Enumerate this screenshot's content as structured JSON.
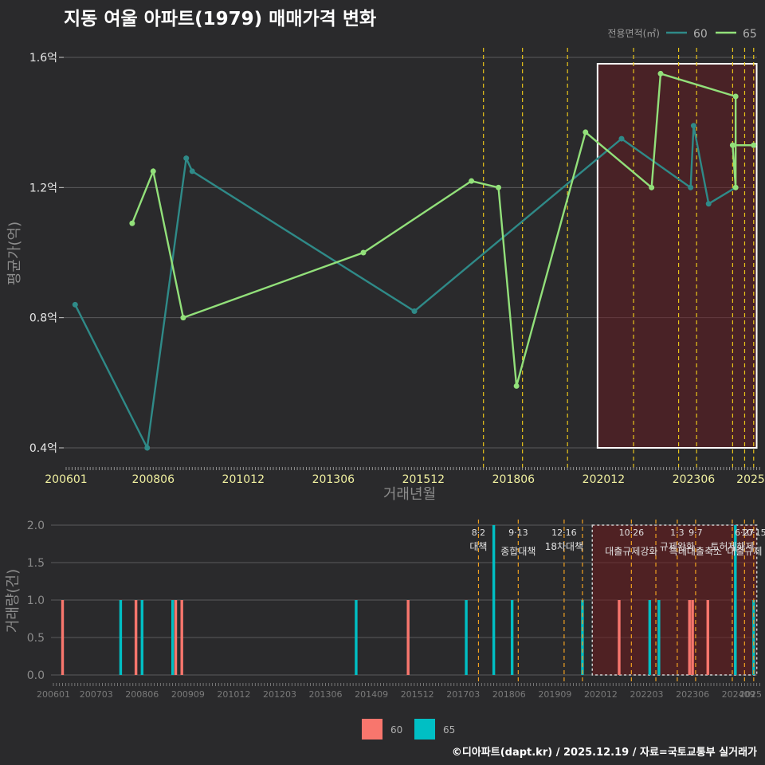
{
  "title": "지동 여울 아파트(1979) 매매가격 변화",
  "credit": "©디아파트(dapt.kr) / 2025.12.19 / 자료=국토교통부 실거래가",
  "colors": {
    "s60_price": "#2f8a88",
    "s65_price": "#92e07a",
    "s60_volume": "#f8766d",
    "s65_volume": "#00bfc4",
    "policy_line": "#e8c41a",
    "highlight_border": "#ffffff"
  },
  "chart_data": [
    {
      "type": "line",
      "title": "지동 여울 아파트(1979) 매매가격 변화",
      "xlabel": "거래년월",
      "ylabel": "평균가(억)",
      "ylim": [
        0.4,
        1.6
      ],
      "y_ticks": [
        0.4,
        0.8,
        1.2,
        1.6
      ],
      "y_tick_labels": [
        "0.4억",
        "0.8억",
        "1.2억",
        "1.6억"
      ],
      "x_ticks": [
        "200601",
        "200806",
        "201012",
        "201306",
        "201512",
        "201806",
        "202012",
        "202306",
        "2025"
      ],
      "legend_title": "전용면적(㎡)",
      "legend_position": "top-right",
      "series": [
        {
          "name": "60",
          "points": [
            [
              "2006-04",
              0.84
            ],
            [
              "2008-04",
              0.4
            ],
            [
              "2009-05",
              1.29
            ],
            [
              "2009-07",
              1.25
            ],
            [
              "2015-09",
              0.82
            ],
            [
              "2021-06",
              1.35
            ],
            [
              "2023-05",
              1.2
            ],
            [
              "2023-06",
              1.39
            ],
            [
              "2023-11",
              1.15
            ],
            [
              "2024-08",
              1.2
            ]
          ]
        },
        {
          "name": "65",
          "points": [
            [
              "2007-11",
              1.09
            ],
            [
              "2008-06",
              1.25
            ],
            [
              "2009-04",
              0.8
            ],
            [
              "2014-04",
              1.0
            ],
            [
              "2017-04",
              1.22
            ],
            [
              "2018-01",
              1.2
            ],
            [
              "2018-07",
              0.59
            ],
            [
              "2020-06",
              1.37
            ],
            [
              "2022-04",
              1.2
            ],
            [
              "2022-07",
              1.55
            ],
            [
              "2024-08",
              1.48
            ],
            [
              "2024-08",
              1.2
            ],
            [
              "2024-07",
              1.33
            ],
            [
              "2025-02",
              1.33
            ]
          ]
        }
      ],
      "policy_lines": [
        "2017-08",
        "2018-09",
        "2019-12",
        "2021-10",
        "2023-01",
        "2023-07",
        "2024-07",
        "2024-11",
        "2025-02"
      ],
      "highlight_range": [
        "2020-10",
        "2025-03"
      ]
    },
    {
      "type": "bar",
      "ylabel": "거래량(건)",
      "ylim": [
        0,
        2.0
      ],
      "y_ticks": [
        0.0,
        0.5,
        1.0,
        1.5,
        2.0
      ],
      "y_tick_labels": [
        "0.0",
        "0.5",
        "1.0",
        "1.5",
        "2.0"
      ],
      "x_ticks": [
        "200601",
        "200703",
        "200806",
        "200909",
        "201012",
        "201203",
        "201306",
        "201409",
        "201512",
        "201703",
        "201806",
        "201909",
        "202012",
        "202203",
        "202306",
        "202409",
        "2025"
      ],
      "series": [
        {
          "name": "60",
          "bars": [
            [
              "2006-04",
              1
            ],
            [
              "2008-04",
              1
            ],
            [
              "2009-05",
              1
            ],
            [
              "2009-07",
              1
            ],
            [
              "2015-09",
              1
            ],
            [
              "2021-06",
              1
            ],
            [
              "2023-05",
              1
            ],
            [
              "2023-06",
              1
            ],
            [
              "2023-11",
              1
            ],
            [
              "2024-08",
              1
            ]
          ]
        },
        {
          "name": "65",
          "bars": [
            [
              "2007-11",
              1
            ],
            [
              "2008-06",
              1
            ],
            [
              "2009-04",
              1
            ],
            [
              "2014-04",
              1
            ],
            [
              "2017-04",
              1
            ],
            [
              "2018-01",
              2
            ],
            [
              "2018-07",
              1
            ],
            [
              "2020-06",
              1
            ],
            [
              "2022-04",
              1
            ],
            [
              "2022-07",
              1
            ],
            [
              "2024-08",
              2
            ],
            [
              "2025-02",
              1
            ]
          ]
        }
      ],
      "policy_lines": [
        "2017-08",
        "2018-09",
        "2019-12",
        "2020-06",
        "2021-10",
        "2022-06",
        "2023-01",
        "2023-07",
        "2024-07",
        "2024-11",
        "2025-02"
      ],
      "annotations": [
        {
          "date": "8·2",
          "label": "대책",
          "at": "2017-08"
        },
        {
          "date": "9·13",
          "label": "종합대책",
          "at": "2018-09"
        },
        {
          "date": "12·16",
          "label": "18차대책",
          "at": "2019-12"
        },
        {
          "date": "10·26",
          "label": "대출규제강화",
          "at": "2021-10"
        },
        {
          "date": "1·3",
          "label": "규제완화",
          "at": "2023-01"
        },
        {
          "date": "9·7",
          "label": "특례대출축소",
          "at": "2023-07"
        },
        {
          "date": "",
          "label": "토허제해제",
          "at": "2024-07"
        },
        {
          "date": "6·27",
          "label": "대출규제",
          "at": "2024-11"
        },
        {
          "date": "10·15",
          "label": "",
          "at": "2025-02"
        }
      ],
      "legend": [
        "60",
        "65"
      ],
      "legend_position": "bottom"
    }
  ]
}
